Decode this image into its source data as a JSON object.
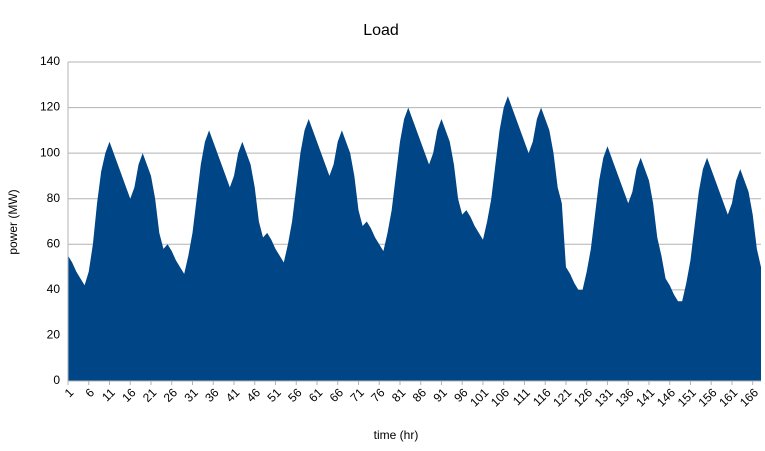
{
  "chart_data": {
    "type": "area",
    "title": "Load",
    "x_label": "time (hr)",
    "y_label": "power (MW)",
    "color": "#004586",
    "grid": true,
    "x": [
      1,
      2,
      3,
      4,
      5,
      6,
      7,
      8,
      9,
      10,
      11,
      12,
      13,
      14,
      15,
      16,
      17,
      18,
      19,
      20,
      21,
      22,
      23,
      24,
      25,
      26,
      27,
      28,
      29,
      30,
      31,
      32,
      33,
      34,
      35,
      36,
      37,
      38,
      39,
      40,
      41,
      42,
      43,
      44,
      45,
      46,
      47,
      48,
      49,
      50,
      51,
      52,
      53,
      54,
      55,
      56,
      57,
      58,
      59,
      60,
      61,
      62,
      63,
      64,
      65,
      66,
      67,
      68,
      69,
      70,
      71,
      72,
      73,
      74,
      75,
      76,
      77,
      78,
      79,
      80,
      81,
      82,
      83,
      84,
      85,
      86,
      87,
      88,
      89,
      90,
      91,
      92,
      93,
      94,
      95,
      96,
      97,
      98,
      99,
      100,
      101,
      102,
      103,
      104,
      105,
      106,
      107,
      108,
      109,
      110,
      111,
      112,
      113,
      114,
      115,
      116,
      117,
      118,
      119,
      120,
      121,
      122,
      123,
      124,
      125,
      126,
      127,
      128,
      129,
      130,
      131,
      132,
      133,
      134,
      135,
      136,
      137,
      138,
      139,
      140,
      141,
      142,
      143,
      144,
      145,
      146,
      147,
      148,
      149,
      150,
      151,
      152,
      153,
      154,
      155,
      156,
      157,
      158,
      159,
      160,
      161,
      162,
      163,
      164,
      165,
      166,
      167,
      168
    ],
    "values": [
      55,
      52,
      48,
      45,
      42,
      48,
      60,
      78,
      92,
      100,
      105,
      100,
      95,
      90,
      85,
      80,
      85,
      95,
      100,
      95,
      90,
      80,
      65,
      58,
      60,
      57,
      53,
      50,
      47,
      55,
      65,
      80,
      95,
      105,
      110,
      105,
      100,
      95,
      90,
      85,
      90,
      100,
      105,
      100,
      95,
      85,
      70,
      63,
      65,
      62,
      58,
      55,
      52,
      60,
      70,
      85,
      100,
      110,
      115,
      110,
      105,
      100,
      95,
      90,
      95,
      105,
      110,
      105,
      100,
      90,
      75,
      68,
      70,
      67,
      63,
      60,
      57,
      65,
      75,
      90,
      105,
      115,
      120,
      115,
      110,
      105,
      100,
      95,
      100,
      110,
      115,
      110,
      105,
      95,
      80,
      73,
      75,
      72,
      68,
      65,
      62,
      70,
      80,
      95,
      110,
      120,
      125,
      120,
      115,
      110,
      105,
      100,
      105,
      115,
      120,
      115,
      110,
      100,
      85,
      78,
      50,
      47,
      43,
      40,
      40,
      48,
      58,
      73,
      88,
      98,
      103,
      98,
      93,
      88,
      83,
      78,
      83,
      93,
      98,
      93,
      88,
      78,
      63,
      55,
      45,
      42,
      38,
      35,
      35,
      43,
      53,
      68,
      83,
      93,
      98,
      93,
      88,
      83,
      78,
      73,
      78,
      88,
      93,
      88,
      83,
      73,
      58,
      50
    ],
    "xlim": [
      1,
      168
    ],
    "xticks": [
      1,
      6,
      11,
      16,
      21,
      26,
      31,
      36,
      41,
      46,
      51,
      56,
      61,
      66,
      71,
      76,
      81,
      86,
      91,
      96,
      101,
      106,
      111,
      116,
      121,
      126,
      131,
      136,
      141,
      146,
      151,
      156,
      161,
      166
    ],
    "ylim": [
      0,
      140
    ],
    "yticks": [
      0,
      20,
      40,
      60,
      80,
      100,
      120,
      140
    ]
  }
}
